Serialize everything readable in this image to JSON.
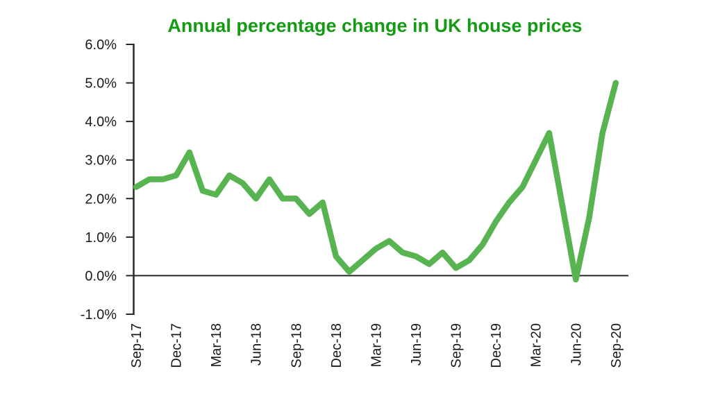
{
  "title": {
    "text": "Annual percentage change in UK house prices",
    "color": "#149B14"
  },
  "chart_data": {
    "type": "line",
    "title": "Annual percentage change in UK house prices",
    "series_name": "Annual % change in UK house prices",
    "x": [
      "Sep-17",
      "Oct-17",
      "Nov-17",
      "Dec-17",
      "Jan-18",
      "Feb-18",
      "Mar-18",
      "Apr-18",
      "May-18",
      "Jun-18",
      "Jul-18",
      "Aug-18",
      "Sep-18",
      "Oct-18",
      "Nov-18",
      "Dec-18",
      "Jan-19",
      "Feb-19",
      "Mar-19",
      "Apr-19",
      "May-19",
      "Jun-19",
      "Jul-19",
      "Aug-19",
      "Sep-19",
      "Oct-19",
      "Nov-19",
      "Dec-19",
      "Jan-20",
      "Feb-20",
      "Mar-20",
      "Apr-20",
      "May-20",
      "Jun-20",
      "Jul-20",
      "Aug-20",
      "Sep-20"
    ],
    "values": [
      2.3,
      2.5,
      2.5,
      2.6,
      3.2,
      2.2,
      2.1,
      2.6,
      2.4,
      2.0,
      2.5,
      2.0,
      2.0,
      1.6,
      1.9,
      0.5,
      0.1,
      0.4,
      0.7,
      0.9,
      0.6,
      0.5,
      0.3,
      0.6,
      0.2,
      0.4,
      0.8,
      1.4,
      1.9,
      2.3,
      3.0,
      3.7,
      1.8,
      -0.1,
      1.5,
      3.7,
      5.0
    ],
    "ylim": [
      -1.0,
      6.0
    ],
    "y_ticks": [
      6,
      5,
      4,
      3,
      2,
      1,
      0,
      -1
    ],
    "y_tick_labels": [
      "6.0%",
      "5.0%",
      "4.0%",
      "3.0%",
      "2.0%",
      "1.0%",
      "0.0%",
      "-1.0%"
    ],
    "x_tick_month_indices": [
      0,
      3,
      6,
      9,
      12,
      15,
      18,
      21,
      24,
      27,
      30,
      33,
      36
    ],
    "x_tick_labels": [
      "Sep-17",
      "Dec-17",
      "Mar-18",
      "Jun-18",
      "Sep-18",
      "Dec-18",
      "Mar-19",
      "Jun-19",
      "Sep-19",
      "Dec-19",
      "Mar-20",
      "Jun-20",
      "Sep-20"
    ],
    "xlabel": "",
    "ylabel": "",
    "grid": "zero-line-only",
    "legend": "none",
    "line_color": "#57B451",
    "axis_color": "#262626"
  }
}
